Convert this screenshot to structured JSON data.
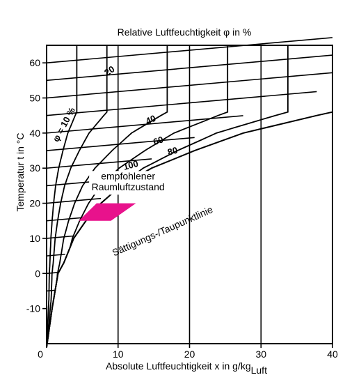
{
  "chart_data": {
    "type": "line",
    "title": "Relative Luftfeuchtigkeit φ in %",
    "xlabel": "Absolute Luftfeuchtigkeit x in g/kg",
    "xlabel_subscript": "Luft",
    "ylabel": "Temperatur t in °C",
    "xlim": [
      0,
      40
    ],
    "ylim": [
      -20,
      65
    ],
    "x_ticks": [
      0,
      10,
      20,
      30,
      40
    ],
    "y_ticks": [
      -10,
      0,
      10,
      20,
      30,
      40,
      50,
      60
    ],
    "grid": {
      "vertical": true,
      "horizontal": false
    },
    "colors": {
      "lines": "#000000",
      "comfort_zone": "#e8128c"
    },
    "series": [
      {
        "name": "φ = 10 %",
        "label": "φ = 10 %",
        "rh": 10
      },
      {
        "name": "20",
        "label": "20",
        "rh": 20
      },
      {
        "name": "40",
        "label": "40",
        "rh": 40
      },
      {
        "name": "60",
        "label": "60",
        "rh": 60
      },
      {
        "name": "80",
        "label": "80",
        "rh": 80
      },
      {
        "name": "100",
        "label": "100",
        "rh": 100
      }
    ],
    "saturation_curve": {
      "label": "Sättigungs-/Taupunktlinie",
      "x": [
        0.0,
        0.77,
        1.6,
        2.4,
        3.8,
        5.5,
        7.6,
        10.4,
        14.7,
        20.7,
        27.5,
        37.8,
        40.0
      ],
      "y": [
        -21,
        -10,
        0,
        3,
        10,
        15,
        20,
        25,
        30,
        35,
        40,
        45,
        46
      ]
    },
    "isotherms": [
      {
        "t": 60,
        "x": [
          0,
          40
        ]
      },
      {
        "t": 55,
        "x": [
          0,
          40
        ]
      },
      {
        "t": 50,
        "x": [
          0,
          40
        ]
      },
      {
        "t": 45,
        "x": [
          0,
          37.8
        ]
      },
      {
        "t": 40,
        "x": [
          0,
          27.5
        ]
      },
      {
        "t": 35,
        "x": [
          0,
          20.7
        ]
      },
      {
        "t": 30,
        "x": [
          0,
          14.7
        ]
      },
      {
        "t": 25,
        "x": [
          0,
          10.4
        ]
      },
      {
        "t": 20,
        "x": [
          0,
          7.6
        ]
      },
      {
        "t": 15,
        "x": [
          0,
          5.5
        ]
      },
      {
        "t": 10,
        "x": [
          0,
          3.8
        ]
      },
      {
        "t": 5,
        "x": [
          0,
          2.6
        ]
      },
      {
        "t": 0,
        "x": [
          0,
          1.6
        ]
      },
      {
        "t": -5,
        "x": [
          0,
          1.3
        ]
      }
    ],
    "comfort_zone": {
      "label_line1": "empfohlener",
      "label_line2": "Raumluftzustand",
      "points": [
        [
          4.5,
          15
        ],
        [
          9.0,
          15
        ],
        [
          12.5,
          20
        ],
        [
          7.0,
          20
        ]
      ]
    }
  }
}
